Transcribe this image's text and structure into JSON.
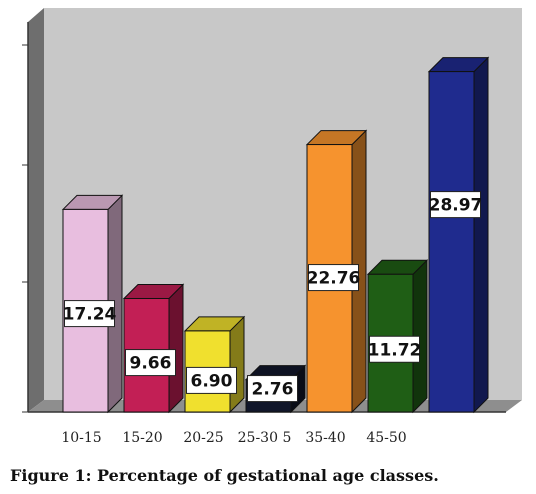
{
  "chart_data": {
    "type": "bar",
    "style": "3d",
    "categories": [
      "10-15",
      "15-20",
      "20-25",
      "25-30 5",
      "35-40",
      "45-50",
      ""
    ],
    "values": [
      17.24,
      9.66,
      6.9,
      2.76,
      22.76,
      11.72,
      28.97
    ],
    "data_labels": [
      "17.24",
      "9.66",
      "6.90",
      "2.76",
      "22.76",
      "11.72",
      "28.97"
    ],
    "colors": [
      "#e8bedf",
      "#c21f55",
      "#f0e02e",
      "#11162a",
      "#f6932e",
      "#1f5e15",
      "#1f2b8e"
    ],
    "ylim": [
      0,
      30
    ],
    "grid": false,
    "background": "#c8c8c8",
    "title": "",
    "xlabel": "",
    "ylabel": ""
  },
  "caption": "Figure 1: Percentage of gestational age classes."
}
